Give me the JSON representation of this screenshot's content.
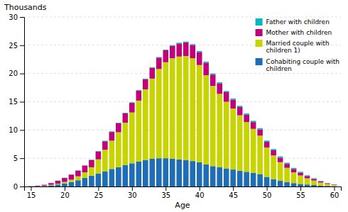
{
  "chart_data": {
    "type": "bar",
    "stacked": true,
    "x_label": "Age",
    "y_label": "Thousands",
    "x": [
      15,
      16,
      17,
      18,
      19,
      20,
      21,
      22,
      23,
      24,
      25,
      26,
      27,
      28,
      29,
      30,
      31,
      32,
      33,
      34,
      35,
      36,
      37,
      38,
      39,
      40,
      41,
      42,
      43,
      44,
      45,
      46,
      47,
      48,
      49,
      50,
      51,
      52,
      53,
      54,
      55,
      56,
      57,
      58,
      59,
      60
    ],
    "series": [
      {
        "name": "Cohabiting couple with\nchildren",
        "color": "#1f6eb5",
        "values": [
          0.0,
          0.05,
          0.1,
          0.2,
          0.35,
          0.55,
          0.8,
          1.1,
          1.5,
          1.9,
          2.3,
          2.7,
          3.1,
          3.4,
          3.8,
          4.1,
          4.4,
          4.7,
          4.9,
          5.0,
          5.0,
          4.9,
          4.8,
          4.7,
          4.5,
          4.3,
          3.9,
          3.6,
          3.4,
          3.2,
          3.0,
          2.8,
          2.6,
          2.4,
          2.2,
          1.7,
          1.3,
          1.0,
          0.8,
          0.6,
          0.45,
          0.35,
          0.25,
          0.15,
          0.1,
          0.05
        ]
      },
      {
        "name": "Married couple with\nchildren 1)",
        "color": "#c8d400",
        "values": [
          0.0,
          0.0,
          0.05,
          0.1,
          0.15,
          0.25,
          0.4,
          0.7,
          1.0,
          1.5,
          2.5,
          3.8,
          5.0,
          6.2,
          7.5,
          9.0,
          10.8,
          12.5,
          14.2,
          15.8,
          17.0,
          17.8,
          18.2,
          18.4,
          18.2,
          17.2,
          15.8,
          14.2,
          13.0,
          11.8,
          10.8,
          9.8,
          8.8,
          7.8,
          6.8,
          5.2,
          4.2,
          3.3,
          2.5,
          1.9,
          1.5,
          1.1,
          0.8,
          0.55,
          0.35,
          0.2
        ]
      },
      {
        "name": "Mother with children",
        "color": "#c2007a",
        "values": [
          0.05,
          0.1,
          0.15,
          0.3,
          0.5,
          0.7,
          0.9,
          1.0,
          1.2,
          1.3,
          1.4,
          1.5,
          1.55,
          1.6,
          1.65,
          1.7,
          1.75,
          1.8,
          1.9,
          2.0,
          2.1,
          2.2,
          2.3,
          2.4,
          2.35,
          2.3,
          2.2,
          2.0,
          1.85,
          1.7,
          1.55,
          1.45,
          1.3,
          1.2,
          1.1,
          1.0,
          0.9,
          0.8,
          0.7,
          0.6,
          0.5,
          0.4,
          0.3,
          0.2,
          0.12,
          0.08
        ]
      },
      {
        "name": "Father with children",
        "color": "#00b8c0",
        "values": [
          0.0,
          0.0,
          0.0,
          0.05,
          0.05,
          0.05,
          0.05,
          0.05,
          0.05,
          0.05,
          0.08,
          0.1,
          0.1,
          0.1,
          0.1,
          0.1,
          0.1,
          0.1,
          0.12,
          0.12,
          0.12,
          0.12,
          0.15,
          0.15,
          0.15,
          0.18,
          0.2,
          0.2,
          0.2,
          0.2,
          0.22,
          0.22,
          0.22,
          0.22,
          0.22,
          0.22,
          0.22,
          0.22,
          0.2,
          0.18,
          0.15,
          0.12,
          0.1,
          0.08,
          0.05,
          0.03
        ]
      }
    ],
    "xlim": [
      14,
      61
    ],
    "xticks": [
      15,
      20,
      25,
      30,
      35,
      40,
      45,
      50,
      55,
      60
    ],
    "ylim": [
      0,
      30
    ],
    "yticks": [
      0,
      5,
      10,
      15,
      20,
      25,
      30
    ],
    "grid": true,
    "legend": "upper right"
  }
}
